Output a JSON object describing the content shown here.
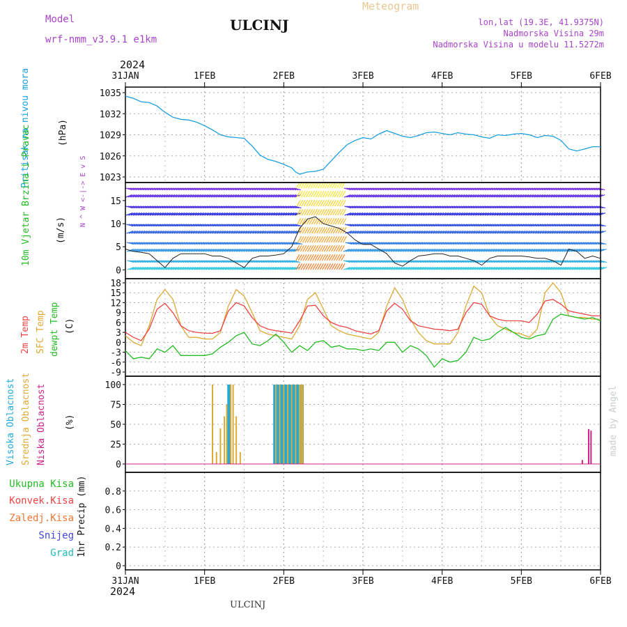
{
  "header": {
    "model_label": "Model",
    "model_value": "wrf-nmm_v3.9.1 e1km",
    "station": "ULCINJ",
    "meteogram": "Meteogram",
    "lonlat": "lon,lat (19.3E, 41.9375N)",
    "altitude": "Nadmorska Visina 29m",
    "model_altitude": "Nadmorska Visina u modelu 11.5272m"
  },
  "footer": {
    "station": "ULCINJ",
    "credit": "made by Angel"
  },
  "colors": {
    "pressure": "#1aa0e0",
    "temp2m": "#ee4444",
    "sfc": "#ddaa33",
    "dewpt": "#22bb22",
    "high_cloud": "#22aadd",
    "mid_cloud": "#ddaa33",
    "low_cloud": "#cc2288",
    "purple": "#aa44cc",
    "meteogram": "#e8c890"
  },
  "chart_data": [
    {
      "type": "line",
      "name": "pressure",
      "ylabel": "Pritisak na nivou mora",
      "unit": "(hPa)",
      "ylim": [
        1023,
        1035
      ],
      "yticks": [
        "1023",
        "1026",
        "1029",
        "1032",
        "1035"
      ],
      "grid": true,
      "x_days": [
        0,
        0.1,
        0.2,
        0.3,
        0.4,
        0.5,
        0.6,
        0.7,
        0.8,
        0.9,
        1.0,
        1.1,
        1.2,
        1.3,
        1.4,
        1.5,
        1.6,
        1.7,
        1.8,
        1.9,
        2.0,
        2.1,
        2.15,
        2.2,
        2.3,
        2.4,
        2.5,
        2.6,
        2.7,
        2.8,
        2.9,
        3.0,
        3.1,
        3.2,
        3.3,
        3.4,
        3.5,
        3.6,
        3.7,
        3.8,
        3.9,
        4.0,
        4.1,
        4.2,
        4.3,
        4.4,
        4.5,
        4.6,
        4.7,
        4.8,
        4.9,
        5.0,
        5.1,
        5.2,
        5.3,
        5.4,
        5.5,
        5.6,
        5.7,
        5.8,
        5.9,
        6.0
      ],
      "values": [
        1034.5,
        1034.2,
        1033.7,
        1033.6,
        1033.1,
        1032.2,
        1031.5,
        1031.2,
        1031.1,
        1030.8,
        1030.3,
        1029.7,
        1029.0,
        1028.7,
        1028.6,
        1028.5,
        1027.4,
        1026.1,
        1025.5,
        1025.2,
        1024.8,
        1024.3,
        1023.7,
        1023.4,
        1023.7,
        1023.8,
        1024.1,
        1025.3,
        1026.5,
        1027.6,
        1028.2,
        1028.6,
        1028.4,
        1029.1,
        1029.6,
        1029.2,
        1028.8,
        1028.6,
        1028.9,
        1029.3,
        1029.4,
        1029.2,
        1029.0,
        1029.3,
        1029.1,
        1029.0,
        1028.7,
        1028.5,
        1029.0,
        1028.9,
        1029.1,
        1029.2,
        1029.0,
        1028.6,
        1028.9,
        1028.8,
        1028.2,
        1027.0,
        1026.7,
        1027.0,
        1027.3,
        1027.3
      ]
    },
    {
      "type": "line",
      "name": "wind",
      "ylabel": "10m Vjetar Brzina i Pravac",
      "unit": "(m/s)",
      "ylim": [
        -1,
        18
      ],
      "yticks": [
        "0",
        "5",
        "10",
        "15"
      ],
      "compass": "N ^ W <-|-> E v S",
      "x_days": [
        0,
        0.1,
        0.2,
        0.3,
        0.4,
        0.5,
        0.6,
        0.7,
        0.8,
        0.9,
        1.0,
        1.1,
        1.2,
        1.3,
        1.4,
        1.5,
        1.6,
        1.7,
        1.8,
        1.9,
        2.0,
        2.1,
        2.2,
        2.3,
        2.4,
        2.5,
        2.6,
        2.7,
        2.8,
        2.9,
        3.0,
        3.1,
        3.2,
        3.3,
        3.4,
        3.5,
        3.6,
        3.7,
        3.8,
        3.9,
        4.0,
        4.1,
        4.2,
        4.3,
        4.4,
        4.5,
        4.6,
        4.7,
        4.8,
        4.9,
        5.0,
        5.1,
        5.2,
        5.3,
        5.4,
        5.5,
        5.6,
        5.7,
        5.8,
        5.9,
        6.0
      ],
      "values": [
        4.5,
        4.0,
        3.8,
        3.5,
        2.0,
        0.5,
        2.5,
        3.5,
        3.5,
        3.5,
        3.5,
        3.0,
        3.0,
        2.5,
        1.5,
        0.5,
        2.5,
        3.0,
        3.0,
        3.2,
        3.5,
        5.0,
        9.0,
        11.0,
        11.5,
        10.0,
        9.5,
        9.0,
        8.0,
        6.5,
        5.5,
        5.5,
        4.5,
        3.5,
        1.5,
        0.8,
        2.0,
        3.0,
        3.2,
        3.5,
        3.5,
        3.0,
        3.0,
        2.5,
        2.0,
        1.0,
        2.5,
        3.0,
        3.0,
        3.0,
        3.0,
        2.8,
        2.5,
        2.5,
        2.0,
        1.0,
        4.5,
        4.0,
        2.5,
        3.0,
        2.5
      ]
    },
    {
      "type": "line",
      "ylabel": "(C)",
      "ylim": [
        -9,
        18
      ],
      "yticks": [
        "-9",
        "-6",
        "-3",
        "0",
        "3",
        "6",
        "9",
        "12",
        "15",
        "18"
      ],
      "grid": true,
      "x_days": [
        0,
        0.1,
        0.2,
        0.3,
        0.4,
        0.5,
        0.6,
        0.7,
        0.8,
        0.9,
        1.0,
        1.1,
        1.2,
        1.3,
        1.4,
        1.5,
        1.6,
        1.7,
        1.8,
        1.9,
        2.0,
        2.1,
        2.2,
        2.3,
        2.4,
        2.5,
        2.6,
        2.7,
        2.8,
        2.9,
        3.0,
        3.1,
        3.2,
        3.3,
        3.4,
        3.5,
        3.6,
        3.7,
        3.8,
        3.9,
        4.0,
        4.1,
        4.2,
        4.3,
        4.4,
        4.5,
        4.6,
        4.7,
        4.8,
        4.9,
        5.0,
        5.1,
        5.2,
        5.3,
        5.4,
        5.5,
        5.6,
        5.7,
        5.8,
        5.9,
        6.0
      ],
      "series": [
        {
          "name": "2m Temp",
          "values": [
            3.0,
            1.5,
            0.5,
            4.0,
            10.0,
            11.8,
            9.0,
            5.0,
            3.5,
            3.0,
            2.8,
            2.7,
            3.5,
            9.5,
            12.0,
            11.0,
            7.5,
            5.0,
            4.0,
            3.5,
            3.2,
            2.8,
            6.5,
            11.0,
            11.2,
            8.0,
            6.0,
            5.0,
            4.5,
            3.5,
            3.0,
            2.5,
            3.5,
            9.5,
            11.8,
            10.0,
            6.5,
            5.0,
            4.5,
            4.0,
            3.8,
            3.5,
            4.0,
            9.0,
            12.0,
            11.5,
            8.0,
            7.0,
            6.5,
            6.5,
            6.5,
            6.0,
            8.5,
            12.5,
            13.0,
            11.5,
            9.5,
            9.0,
            8.5,
            8.0,
            8.0
          ]
        },
        {
          "name": "SFC Temp",
          "values": [
            2.0,
            0.0,
            -1.0,
            5.0,
            13.0,
            16.0,
            13.0,
            5.0,
            1.5,
            1.5,
            1.0,
            1.0,
            3.0,
            11.0,
            16.0,
            14.0,
            9.0,
            3.5,
            2.5,
            2.0,
            1.5,
            1.0,
            5.0,
            13.0,
            15.0,
            10.0,
            5.0,
            3.5,
            2.5,
            2.0,
            1.5,
            1.0,
            3.0,
            11.0,
            16.5,
            13.0,
            7.0,
            3.0,
            0.5,
            -0.5,
            -0.5,
            -0.5,
            3.0,
            11.0,
            17.0,
            15.0,
            8.0,
            5.0,
            4.0,
            3.0,
            2.5,
            1.5,
            4.0,
            15.0,
            18.0,
            15.0,
            8.0,
            7.5,
            7.5,
            7.0,
            7.0
          ]
        },
        {
          "name": "dewpt Temp",
          "values": [
            -2.5,
            -5.0,
            -4.5,
            -5.0,
            -2.0,
            -3.0,
            -1.0,
            -4.0,
            -4.0,
            -4.0,
            -4.0,
            -3.5,
            -1.5,
            0.0,
            2.0,
            3.0,
            -0.5,
            -1.0,
            0.5,
            2.5,
            0.0,
            -3.0,
            -1.0,
            -2.5,
            0.0,
            0.5,
            -1.5,
            -1.0,
            -2.0,
            -2.0,
            -2.5,
            -2.0,
            -2.5,
            0.0,
            0.0,
            -3.0,
            -1.0,
            -2.0,
            -4.0,
            -7.5,
            -5.0,
            -6.0,
            -5.5,
            -3.0,
            1.5,
            0.5,
            1.0,
            3.0,
            4.5,
            3.0,
            1.5,
            1.0,
            2.0,
            2.5,
            7.0,
            8.5,
            8.0,
            7.5,
            7.0,
            7.5,
            6.5
          ]
        }
      ]
    },
    {
      "type": "bar",
      "name": "cloud",
      "ylabel": "(%)",
      "ylim": [
        0,
        100
      ],
      "yticks": [
        "0",
        "25",
        "50",
        "75",
        "100"
      ],
      "grid": true,
      "series": [
        {
          "name": "Visoka Oblacnost",
          "x_days": [
            1.3,
            1.32,
            1.88,
            1.9,
            1.92,
            1.94,
            1.96,
            1.98,
            2.0,
            2.02,
            2.04,
            2.06,
            2.08,
            2.1,
            2.12,
            2.14,
            2.16,
            2.18,
            2.2,
            2.22,
            2.24
          ],
          "values": [
            100,
            100,
            100,
            100,
            100,
            100,
            100,
            100,
            100,
            100,
            100,
            100,
            100,
            100,
            100,
            100,
            100,
            100,
            100,
            100,
            100
          ]
        },
        {
          "name": "Srednja Oblacnost",
          "x_days": [
            1.1,
            1.15,
            1.2,
            1.25,
            1.28,
            1.33,
            1.36,
            1.4,
            1.45,
            1.9,
            1.95,
            2.0,
            2.05,
            2.1,
            2.15,
            2.2,
            2.22,
            2.24
          ],
          "values": [
            100,
            15,
            45,
            60,
            75,
            100,
            100,
            60,
            15,
            100,
            100,
            100,
            100,
            100,
            100,
            100,
            100,
            100
          ]
        },
        {
          "name": "Niska Oblacnost",
          "x_days": [
            5.77,
            5.85,
            5.88
          ],
          "values": [
            5,
            44,
            42
          ]
        }
      ]
    },
    {
      "type": "bar",
      "name": "precip",
      "ylabel": "1hr Precip (mm)",
      "ylim": [
        0,
        1
      ],
      "yticks": [
        "0",
        "0.2",
        "0.4",
        "0.6",
        "0.8"
      ],
      "grid": true,
      "series": [
        {
          "name": "Ukupna Kisa",
          "values": []
        },
        {
          "name": "Konvek.Kisa",
          "values": []
        },
        {
          "name": "Zaledj.Kisa",
          "values": []
        },
        {
          "name": "Snijeg",
          "values": []
        },
        {
          "name": "Grad",
          "values": []
        }
      ]
    }
  ],
  "x_axis": {
    "year": "2024",
    "labels": [
      "31JAN",
      "1FEB",
      "2FEB",
      "3FEB",
      "4FEB",
      "5FEB",
      "6FEB"
    ]
  }
}
